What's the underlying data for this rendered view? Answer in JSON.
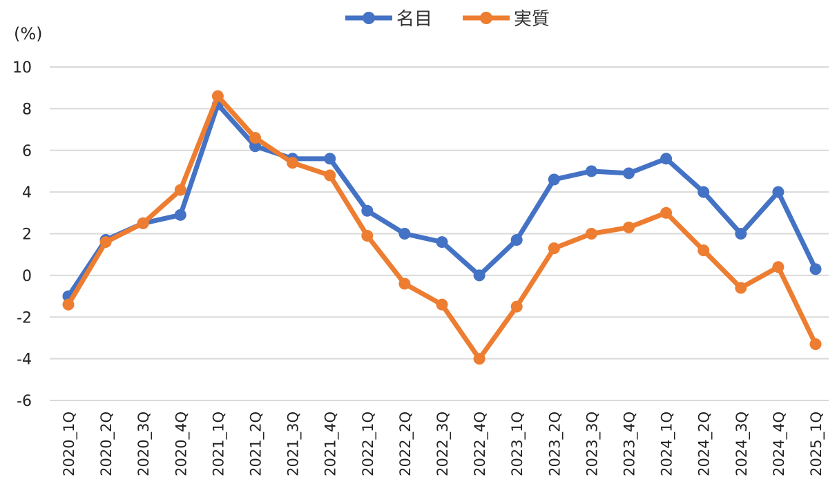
{
  "chart_data": {
    "type": "line",
    "title": "",
    "xlabel": "",
    "ylabel": "(%)",
    "ylim": [
      -6,
      10
    ],
    "yticks": [
      10,
      8,
      6,
      4,
      2,
      0,
      -2,
      -4,
      -6
    ],
    "negative_tick_color": "#ff0000",
    "grid": true,
    "legend_position": "top-center",
    "categories": [
      "2020_1Q",
      "2020_2Q",
      "2020_3Q",
      "2020_4Q",
      "2021_1Q",
      "2021_2Q",
      "2021_3Q",
      "2021_4Q",
      "2022_1Q",
      "2022_2Q",
      "2022_3Q",
      "2022_4Q",
      "2023_1Q",
      "2023_2Q",
      "2023_3Q",
      "2023_4Q",
      "2024_1Q",
      "2024_2Q",
      "2024_3Q",
      "2024_4Q",
      "2025_1Q"
    ],
    "series": [
      {
        "name": "名目",
        "color": "#4472c4",
        "values": [
          -1.0,
          1.7,
          2.5,
          2.9,
          8.2,
          6.2,
          5.6,
          5.6,
          3.1,
          2.0,
          1.6,
          0.0,
          1.7,
          4.6,
          5.0,
          4.9,
          5.6,
          4.0,
          2.0,
          4.0,
          0.3
        ]
      },
      {
        "name": "実質",
        "color": "#ed7d31",
        "values": [
          -1.4,
          1.6,
          2.5,
          4.1,
          8.6,
          6.6,
          5.4,
          4.8,
          1.9,
          -0.4,
          -1.4,
          -4.0,
          -1.5,
          1.3,
          2.0,
          2.3,
          3.0,
          1.2,
          -0.6,
          0.4,
          -3.3
        ]
      }
    ]
  }
}
